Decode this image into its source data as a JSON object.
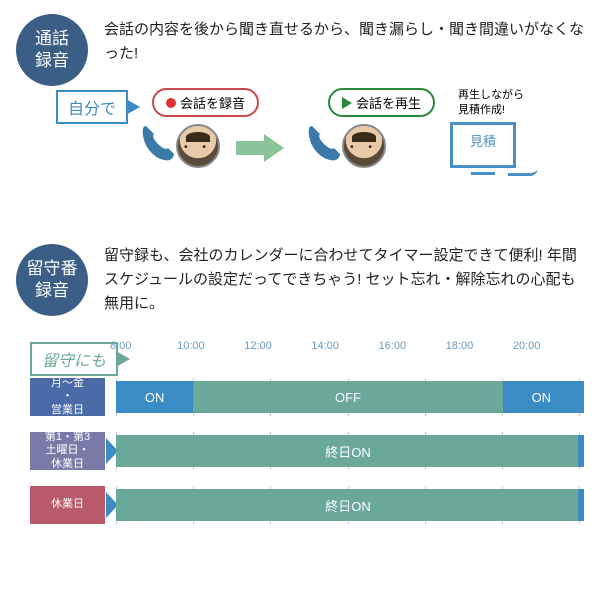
{
  "colors": {
    "badge_blue": "#3b5e87",
    "text_dark": "#222222",
    "accent_blue": "#3b8bc4",
    "accent_teal": "#6aa89a",
    "arrow_green": "#8bc49a",
    "monitor_blue": "#4a8fc7",
    "time_label": "#6a9ac4",
    "row_blue": "#4a6aa8",
    "row_purple": "#7a7aa8",
    "row_red": "#b85a6a",
    "bar_on": "#3b8bc4",
    "bar_off": "#6aa89a",
    "bar_allday": "#6aa89a",
    "grid": "#cccccc"
  },
  "section1": {
    "badge": "通話\n録音",
    "badge_fontsize": 17,
    "desc": "会話の内容を後から聞き直せるから、聞き漏らし・聞き間違いがなくなった!",
    "desc_fontsize": 15,
    "self_label": "自分で",
    "self_label_color": "#3b8bc4",
    "rec_pill": "会話を録音",
    "rec_pill_border": "#c84a4a",
    "play_pill": "会話を再生",
    "play_pill_border": "#2a8a3a",
    "side_text": "再生しながら\n見積作成!",
    "monitor_label": "見積",
    "arrow_green_width": 40
  },
  "section2": {
    "badge": "留守番\n録音",
    "badge_fontsize": 17,
    "desc": "留守録も、会社のカレンダーに合わせてタイマー設定できて便利! 年間スケジュールの設定だってできちゃう! セット忘れ・解除忘れの心配も無用に。",
    "desc_fontsize": 15,
    "rusu_label": "留守にも",
    "rusu_label_color": "#6aa89a",
    "timeline": {
      "start": 8,
      "end": 20,
      "step": 2,
      "times": [
        "8:00",
        "10:00",
        "12:00",
        "14:00",
        "16:00",
        "18:00",
        "20:00"
      ],
      "label_fontsize": 11
    },
    "rows": [
      {
        "label": "月～金\n・\n営業日",
        "label_bg": "#4a6aa8",
        "segments": [
          {
            "from": 8,
            "to": 10,
            "text": "ON",
            "color": "#3b8bc4",
            "arrow_right": true
          },
          {
            "from": 10,
            "to": 18,
            "text": "OFF",
            "color": "#6aa89a"
          },
          {
            "from": 18,
            "to": 20,
            "text": "ON",
            "color": "#3b8bc4"
          }
        ],
        "notch_at": 20,
        "notch_color": "#3b8bc4"
      },
      {
        "label": "第1・第3\n土曜日・\n休業日",
        "label_bg": "#7a7aa8",
        "segments": [
          {
            "from": 8,
            "to": 20,
            "text": "終日ON",
            "color": "#6aa89a"
          }
        ],
        "lead_arrow_color": "#3b8bc4",
        "notch_at": 20,
        "notch_color": "#3b8bc4"
      },
      {
        "label": "休業日",
        "label_bg": "#b85a6a",
        "segments": [
          {
            "from": 8,
            "to": 20,
            "text": "終日ON",
            "color": "#6aa89a"
          }
        ],
        "lead_arrow_color": "#3b8bc4",
        "notch_at": 20,
        "notch_color": "#3b8bc4"
      }
    ]
  }
}
